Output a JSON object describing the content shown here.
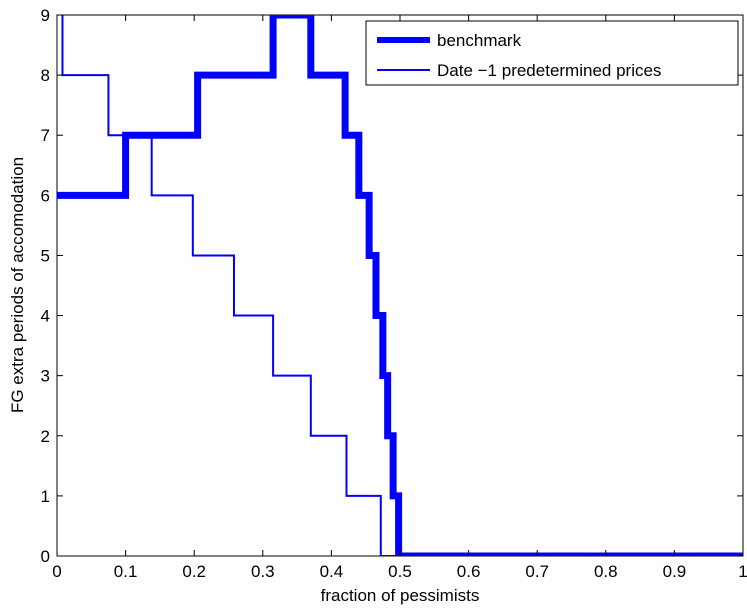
{
  "chart_data": {
    "type": "line",
    "title": "",
    "xlabel": "fraction of pessimists",
    "ylabel": "FG extra periods of accomodation",
    "xlim": [
      0,
      1
    ],
    "ylim": [
      0,
      9
    ],
    "xticks": [
      0,
      0.1,
      0.2,
      0.3,
      0.4,
      0.5,
      0.6,
      0.7,
      0.8,
      0.9,
      1
    ],
    "xtick_labels": [
      "0",
      "0.1",
      "0.2",
      "0.3",
      "0.4",
      "0.5",
      "0.6",
      "0.7",
      "0.8",
      "0.9",
      "1"
    ],
    "yticks": [
      0,
      1,
      2,
      3,
      4,
      5,
      6,
      7,
      8,
      9
    ],
    "ytick_labels": [
      "0",
      "1",
      "2",
      "3",
      "4",
      "5",
      "6",
      "7",
      "8",
      "9"
    ],
    "grid": false,
    "legend_position": "top-right",
    "series": [
      {
        "name": "benchmark",
        "color": "#0000ff",
        "style": "thick step line",
        "x": [
          0,
          0.1,
          0.1,
          0.205,
          0.205,
          0.315,
          0.315,
          0.37,
          0.37,
          0.42,
          0.42,
          0.44,
          0.44,
          0.455,
          0.455,
          0.465,
          0.465,
          0.475,
          0.475,
          0.482,
          0.482,
          0.49,
          0.49,
          0.498,
          0.498,
          1.0
        ],
        "y": [
          6,
          6,
          7,
          7,
          8,
          8,
          9,
          9,
          8,
          8,
          7,
          7,
          6,
          6,
          5,
          5,
          4,
          4,
          3,
          3,
          2,
          2,
          1,
          1,
          0,
          0
        ]
      },
      {
        "name": "Date −1 predetermined prices",
        "color": "#0000ff",
        "style": "thin step line",
        "x": [
          0.008,
          0.008,
          0.075,
          0.075,
          0.138,
          0.138,
          0.198,
          0.198,
          0.258,
          0.258,
          0.315,
          0.315,
          0.37,
          0.37,
          0.422,
          0.422,
          0.472,
          0.472,
          1.0
        ],
        "y": [
          9,
          8,
          8,
          7,
          7,
          6,
          6,
          5,
          5,
          4,
          4,
          3,
          3,
          2,
          2,
          1,
          1,
          0,
          0
        ]
      }
    ]
  }
}
